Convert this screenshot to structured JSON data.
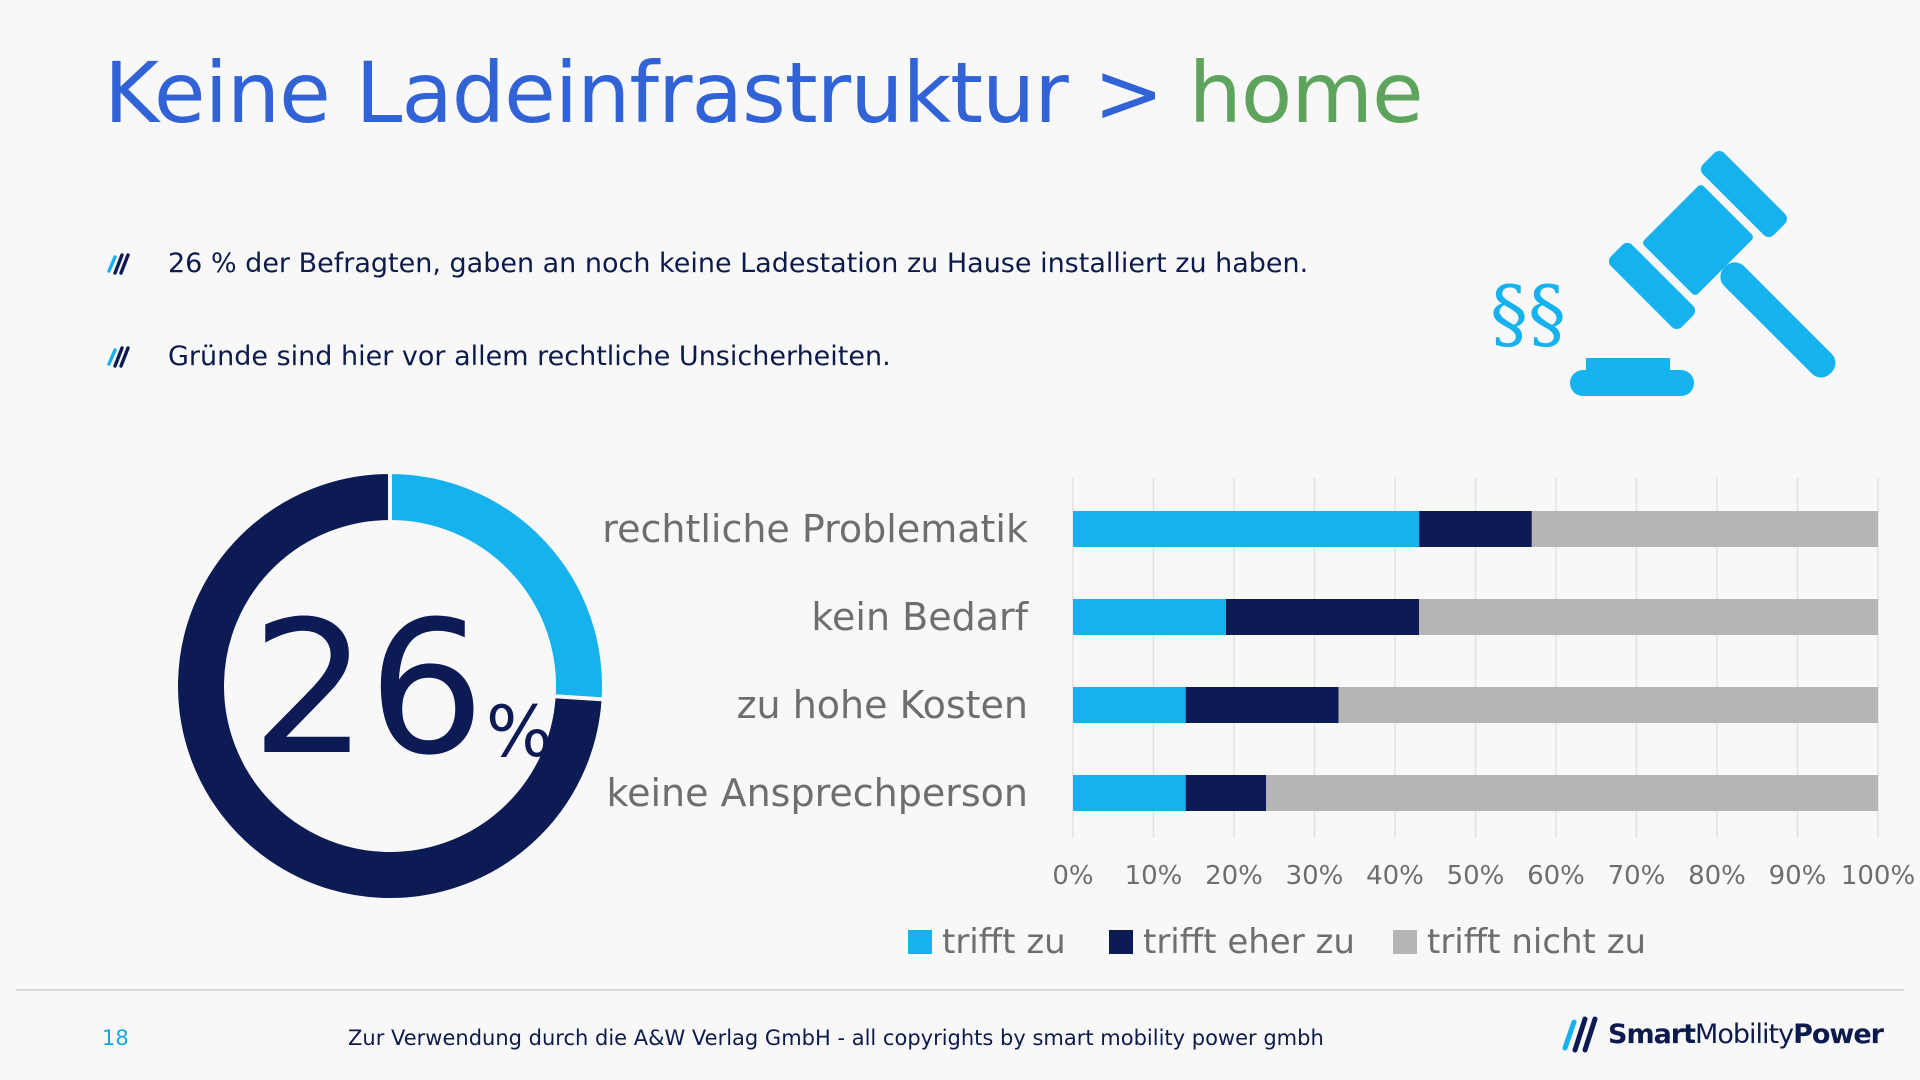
{
  "slide": {
    "title_main": "Keine Ladeinfrastruktur > ",
    "title_accent": "home",
    "bullets": [
      "26 % der Befragten, gaben an noch keine Ladestation zu Hause installiert zu haben.",
      "Gründe sind hier vor allem rechtliche Unsicherheiten."
    ],
    "paragraph_icon": "§§",
    "footer": {
      "page_number": "18",
      "note": "Zur Verwendung durch die A&W Verlag GmbH  - all copyrights by smart mobility power gmbh"
    },
    "brand": {
      "part1": "Smart",
      "part2": "Mobility",
      "part3": "Power"
    }
  },
  "icons": {
    "bullet": "bullet-stripes-icon",
    "gavel": "gavel-icon",
    "brand": "brand-logo-icon"
  },
  "colors": {
    "title": "#3162d6",
    "accent": "#5ea45c",
    "light_blue": "#16b2ee",
    "navy": "#0d1b55",
    "gray": "#b5b5b5"
  },
  "chart_data": [
    {
      "type": "pie",
      "variant": "donut",
      "center_value": "26",
      "center_unit": "%",
      "slices": [
        {
          "label": "",
          "value": 26,
          "color": "#16b2ee"
        },
        {
          "label": "",
          "value": 74,
          "color": "#0d1b55"
        }
      ]
    },
    {
      "type": "bar",
      "orientation": "horizontal",
      "stacked": true,
      "percent": true,
      "categories": [
        "rechtliche Problematik",
        "kein Bedarf",
        "zu hohe Kosten",
        "keine Ansprechperson"
      ],
      "series": [
        {
          "name": "trifft zu",
          "color": "#16b2ee",
          "values": [
            43,
            19,
            14,
            14
          ]
        },
        {
          "name": "trifft eher zu",
          "color": "#0d1b55",
          "values": [
            14,
            24,
            19,
            10
          ]
        },
        {
          "name": "trifft nicht zu",
          "color": "#b5b5b5",
          "values": [
            43,
            57,
            67,
            76
          ]
        }
      ],
      "xlim": [
        0,
        100
      ],
      "xticks": [
        "0%",
        "10%",
        "20%",
        "30%",
        "40%",
        "50%",
        "60%",
        "70%",
        "80%",
        "90%",
        "100%"
      ],
      "grid": true,
      "legend": "bottom"
    }
  ]
}
